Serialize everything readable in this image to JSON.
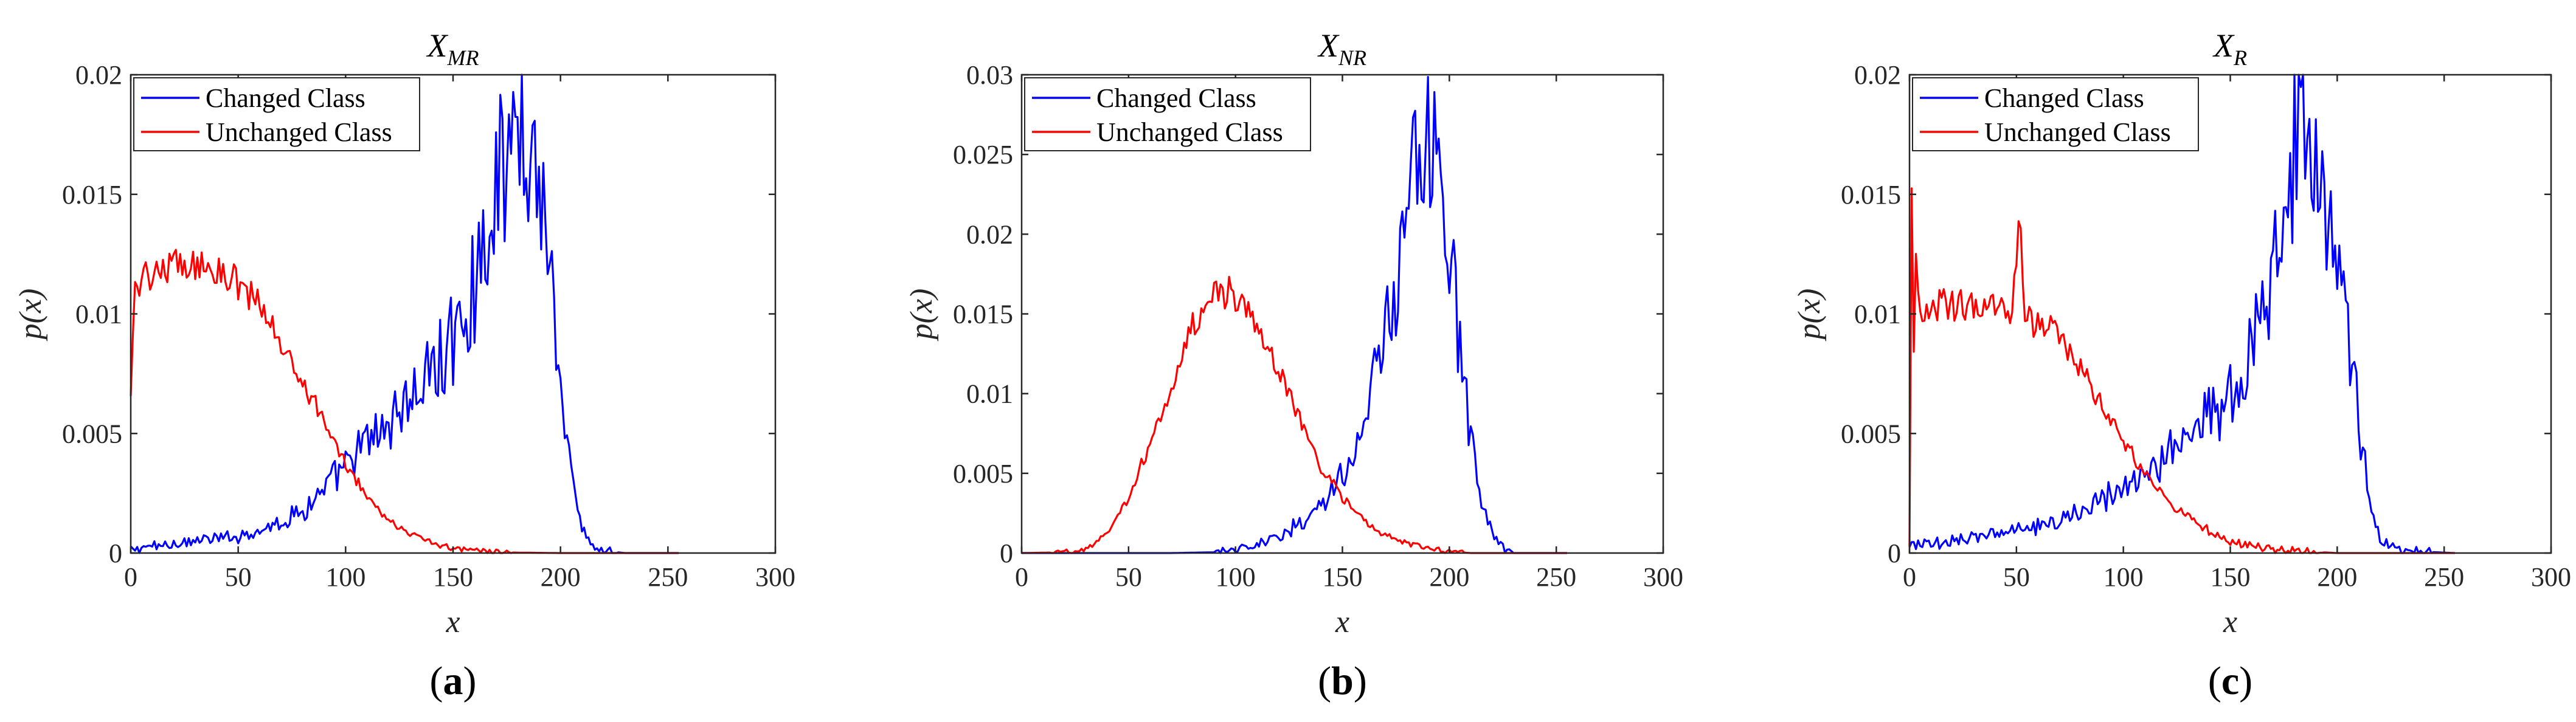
{
  "chart_data": [
    {
      "type": "line",
      "panel_label_open": "(",
      "panel_label_letter": "a",
      "panel_label_close": ")",
      "title_main": "X",
      "title_sub": "MR",
      "xlabel": "x",
      "ylabel": "p(x)",
      "xlim": [
        0,
        300
      ],
      "ylim": [
        0,
        0.02
      ],
      "xticks": [
        "0",
        "50",
        "100",
        "150",
        "200",
        "250",
        "300"
      ],
      "yticks": [
        "0",
        "0.005",
        "0.01",
        "0.015",
        "0.02"
      ],
      "legend_location": "top-left",
      "series": [
        {
          "name": "Changed Class",
          "color": "#0000ff",
          "x": [
            0,
            10,
            20,
            30,
            40,
            50,
            60,
            70,
            80,
            90,
            100,
            110,
            120,
            130,
            140,
            150,
            160,
            165,
            170,
            175,
            180,
            183,
            186,
            190,
            195,
            200,
            205,
            210,
            215,
            220,
            230,
            255
          ],
          "y": [
            0.0001,
            0.0003,
            0.0004,
            0.0005,
            0.0006,
            0.0007,
            0.001,
            0.0013,
            0.0018,
            0.0026,
            0.0036,
            0.0046,
            0.0055,
            0.0064,
            0.0075,
            0.009,
            0.0112,
            0.0132,
            0.0155,
            0.0165,
            0.0175,
            0.018,
            0.017,
            0.0158,
            0.0125,
            0.0072,
            0.0032,
            0.001,
            0.0003,
            0.0001,
            0,
            0
          ]
        },
        {
          "name": "Unchanged Class",
          "color": "#ff0000",
          "x": [
            0,
            2,
            5,
            10,
            20,
            30,
            40,
            50,
            60,
            70,
            80,
            90,
            100,
            110,
            120,
            130,
            140,
            150,
            160,
            170,
            180,
            200,
            220,
            255
          ],
          "y": [
            0.0065,
            0.0112,
            0.0116,
            0.0118,
            0.012,
            0.0121,
            0.0118,
            0.0113,
            0.0103,
            0.0088,
            0.0072,
            0.0054,
            0.0038,
            0.0024,
            0.0014,
            0.0008,
            0.0004,
            0.0002,
            0.0001,
            4e-05,
            2e-05,
            0,
            0,
            0
          ]
        }
      ]
    },
    {
      "type": "line",
      "panel_label_open": "(",
      "panel_label_letter": "b",
      "panel_label_close": ")",
      "title_main": "X",
      "title_sub": "NR",
      "xlabel": "x",
      "ylabel": "p(x)",
      "xlim": [
        0,
        300
      ],
      "ylim": [
        0,
        0.03
      ],
      "xticks": [
        "0",
        "50",
        "100",
        "150",
        "200",
        "250",
        "300"
      ],
      "yticks": [
        "0",
        "0.005",
        "0.01",
        "0.015",
        "0.02",
        "0.025",
        "0.03"
      ],
      "legend_location": "top-left",
      "series": [
        {
          "name": "Changed Class",
          "color": "#0000ff",
          "x": [
            0,
            70,
            90,
            100,
            110,
            120,
            130,
            140,
            150,
            160,
            165,
            170,
            175,
            180,
            185,
            190,
            195,
            200,
            205,
            210,
            215,
            220,
            225,
            230,
            255
          ],
          "y": [
            0,
            0,
            5e-05,
            0.0002,
            0.0005,
            0.001,
            0.0018,
            0.003,
            0.0048,
            0.0078,
            0.0105,
            0.0135,
            0.0165,
            0.0205,
            0.0245,
            0.0258,
            0.0232,
            0.0185,
            0.0125,
            0.0068,
            0.0032,
            0.0012,
            0.0003,
            0,
            0
          ]
        },
        {
          "name": "Unchanged Class",
          "color": "#ff0000",
          "x": [
            0,
            20,
            30,
            40,
            50,
            60,
            70,
            80,
            90,
            95,
            100,
            110,
            120,
            130,
            140,
            150,
            160,
            170,
            180,
            190,
            200,
            210,
            220,
            255
          ],
          "y": [
            0,
            5e-05,
            0.0003,
            0.0012,
            0.0035,
            0.0068,
            0.0105,
            0.0142,
            0.0163,
            0.0164,
            0.016,
            0.0142,
            0.0115,
            0.0083,
            0.0055,
            0.0035,
            0.002,
            0.0011,
            0.0006,
            0.0003,
            0.0001,
            0,
            0,
            0
          ]
        }
      ]
    },
    {
      "type": "line",
      "panel_label_open": "(",
      "panel_label_letter": "c",
      "panel_label_close": ")",
      "title_main": "X",
      "title_sub": "R",
      "xlabel": "x",
      "ylabel": "p(x)",
      "xlim": [
        0,
        300
      ],
      "ylim": [
        0,
        0.02
      ],
      "xticks": [
        "0",
        "50",
        "100",
        "150",
        "200",
        "250",
        "300"
      ],
      "yticks": [
        "0",
        "0.005",
        "0.01",
        "0.015",
        "0.02"
      ],
      "legend_location": "top-left",
      "series": [
        {
          "name": "Changed Class",
          "color": "#0000ff",
          "x": [
            0,
            10,
            20,
            30,
            40,
            50,
            60,
            70,
            80,
            90,
            100,
            110,
            120,
            130,
            140,
            150,
            160,
            170,
            175,
            180,
            183,
            186,
            190,
            195,
            200,
            205,
            210,
            215,
            220,
            230,
            255
          ],
          "y": [
            0.0003,
            0.0004,
            0.0005,
            0.0007,
            0.0008,
            0.001,
            0.0012,
            0.0014,
            0.0018,
            0.0022,
            0.0027,
            0.0032,
            0.004,
            0.0048,
            0.0057,
            0.0068,
            0.0085,
            0.0118,
            0.0148,
            0.0172,
            0.0198,
            0.018,
            0.0158,
            0.0138,
            0.0118,
            0.0092,
            0.0058,
            0.0022,
            0.0006,
            0.0001,
            0
          ]
        },
        {
          "name": "Unchanged Class",
          "color": "#ff0000",
          "x": [
            0,
            1,
            2,
            3,
            5,
            8,
            10,
            20,
            30,
            40,
            48,
            52,
            53,
            54,
            58,
            60,
            70,
            80,
            90,
            100,
            110,
            120,
            130,
            140,
            150,
            160,
            170,
            180,
            190,
            200,
            220,
            255
          ],
          "y": [
            0.0002,
            0.0158,
            0.0085,
            0.0125,
            0.0098,
            0.01,
            0.0102,
            0.0104,
            0.0103,
            0.0102,
            0.0102,
            0.0142,
            0.0115,
            0.0098,
            0.0097,
            0.0096,
            0.009,
            0.0078,
            0.0062,
            0.0047,
            0.0034,
            0.0023,
            0.0015,
            0.0009,
            0.0005,
            0.0003,
            0.00015,
            0.0001,
            5e-05,
            0,
            0,
            0
          ]
        }
      ]
    }
  ]
}
